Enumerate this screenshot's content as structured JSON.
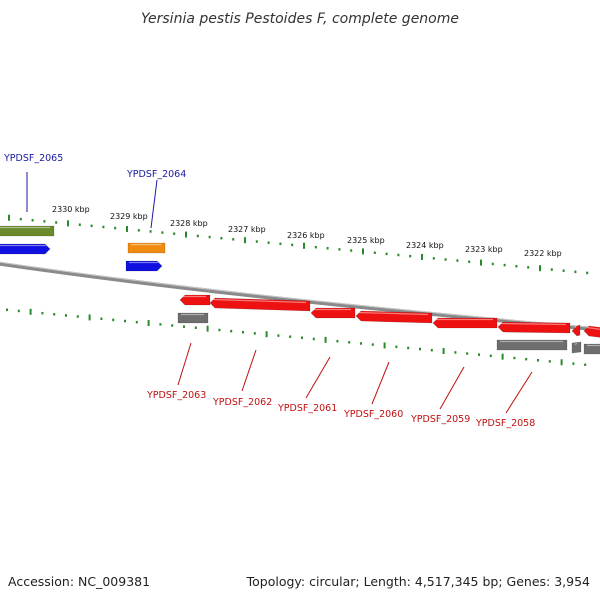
{
  "title": "Yersinia pestis Pestoides F, complete genome",
  "footer": {
    "accession": "Accession: NC_009381",
    "summary": "Topology: circular; Length: 4,517,345 bp; Genes: 3,954"
  },
  "colors": {
    "green": "#6a8a2c",
    "blue": "#1010e0",
    "orange": "#f08a10",
    "red": "#ee1111",
    "gray": "#6e6e6e",
    "tick": "#2a8a2a",
    "backbone": "#8a8a8a",
    "label_blue": "#1a1aa0",
    "label_red": "#c01010"
  },
  "kbp_labels": [
    {
      "text": "2330 kbp"
    },
    {
      "text": "2329 kbp"
    },
    {
      "text": "2328 kbp"
    },
    {
      "text": "2327 kbp"
    },
    {
      "text": "2326 kbp"
    },
    {
      "text": "2325 kbp"
    },
    {
      "text": "2324 kbp"
    },
    {
      "text": "2323 kbp"
    },
    {
      "text": "2322 kbp"
    }
  ],
  "gene_labels": [
    {
      "text": "YPDSF_2065",
      "color": "blue"
    },
    {
      "text": "YPDSF_2064",
      "color": "blue"
    },
    {
      "text": "YPDSF_2063",
      "color": "red"
    },
    {
      "text": "YPDSF_2062",
      "color": "red"
    },
    {
      "text": "YPDSF_2061",
      "color": "red"
    },
    {
      "text": "YPDSF_2060",
      "color": "red"
    },
    {
      "text": "YPDSF_2059",
      "color": "red"
    },
    {
      "text": "YPDSF_2058",
      "color": "red"
    }
  ]
}
